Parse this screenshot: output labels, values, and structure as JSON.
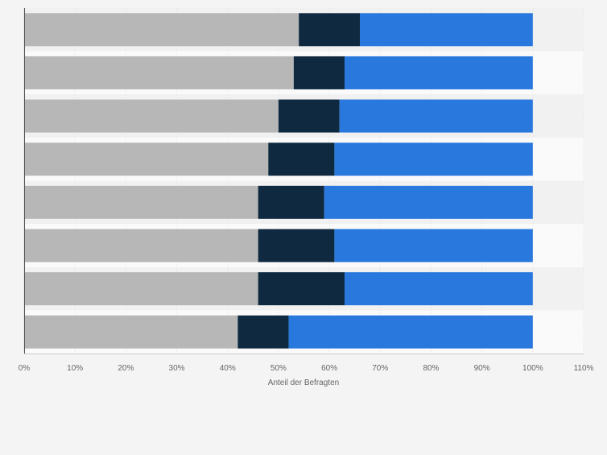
{
  "chart_data": {
    "type": "bar",
    "orientation": "horizontal",
    "stacked": true,
    "xlabel": "Anteil der Befragten",
    "xlim": [
      0,
      110
    ],
    "x_ticks": [
      "0%",
      "10%",
      "20%",
      "30%",
      "40%",
      "50%",
      "60%",
      "70%",
      "80%",
      "90%",
      "100%",
      "110%"
    ],
    "grid": true,
    "legend": "none",
    "category_labels_visible": false,
    "series": [
      {
        "color": "#b7b7b7",
        "values": [
          54,
          53,
          50,
          48,
          46,
          46,
          46,
          42
        ]
      },
      {
        "color": "#0f2a40",
        "values": [
          12,
          10,
          12,
          13,
          13,
          15,
          17,
          10
        ]
      },
      {
        "color": "#2878dd",
        "values": [
          34,
          37,
          38,
          39,
          41,
          39,
          37,
          48
        ]
      }
    ]
  }
}
